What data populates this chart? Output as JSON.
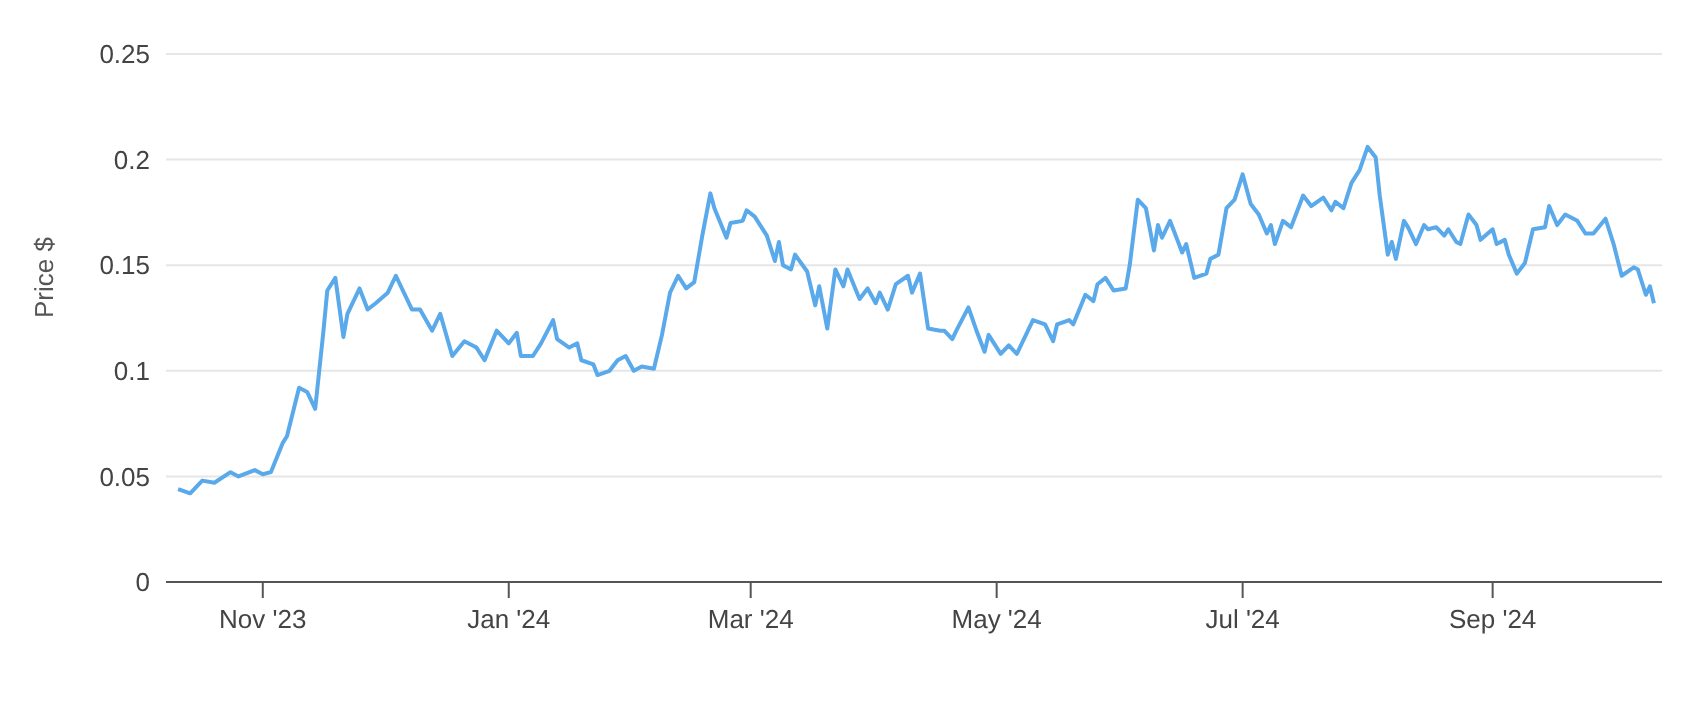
{
  "chart_data": {
    "type": "line",
    "ylabel": "Price $",
    "x": [
      "2023-10-11",
      "2023-10-14",
      "2023-10-17",
      "2023-10-20",
      "2023-10-24",
      "2023-10-26",
      "2023-10-30",
      "2023-11-01",
      "2023-11-03",
      "2023-11-06",
      "2023-11-07",
      "2023-11-10",
      "2023-11-12",
      "2023-11-14",
      "2023-11-16",
      "2023-11-17",
      "2023-11-19",
      "2023-11-21",
      "2023-11-22",
      "2023-11-25",
      "2023-11-27",
      "2023-11-29",
      "2023-12-02",
      "2023-12-04",
      "2023-12-08",
      "2023-12-10",
      "2023-12-13",
      "2023-12-15",
      "2023-12-18",
      "2023-12-21",
      "2023-12-24",
      "2023-12-26",
      "2023-12-29",
      "2024-01-01",
      "2024-01-03",
      "2024-01-04",
      "2024-01-07",
      "2024-01-09",
      "2024-01-12",
      "2024-01-13",
      "2024-01-16",
      "2024-01-18",
      "2024-01-19",
      "2024-01-22",
      "2024-01-23",
      "2024-01-26",
      "2024-01-28",
      "2024-01-30",
      "2024-02-01",
      "2024-02-03",
      "2024-02-06",
      "2024-02-08",
      "2024-02-10",
      "2024-02-12",
      "2024-02-14",
      "2024-02-16",
      "2024-02-18",
      "2024-02-20",
      "2024-02-21",
      "2024-02-24",
      "2024-02-25",
      "2024-02-28",
      "2024-02-29",
      "2024-03-02",
      "2024-03-05",
      "2024-03-07",
      "2024-03-08",
      "2024-03-09",
      "2024-03-11",
      "2024-03-12",
      "2024-03-15",
      "2024-03-17",
      "2024-03-18",
      "2024-03-20",
      "2024-03-22",
      "2024-03-24",
      "2024-03-25",
      "2024-03-28",
      "2024-03-30",
      "2024-04-01",
      "2024-04-02",
      "2024-04-04",
      "2024-04-06",
      "2024-04-09",
      "2024-04-10",
      "2024-04-12",
      "2024-04-14",
      "2024-04-17",
      "2024-04-18",
      "2024-04-20",
      "2024-04-21",
      "2024-04-24",
      "2024-04-26",
      "2024-04-28",
      "2024-04-29",
      "2024-05-02",
      "2024-05-04",
      "2024-05-06",
      "2024-05-10",
      "2024-05-13",
      "2024-05-15",
      "2024-05-16",
      "2024-05-19",
      "2024-05-20",
      "2024-05-23",
      "2024-05-25",
      "2024-05-26",
      "2024-05-28",
      "2024-05-30",
      "2024-06-02",
      "2024-06-03",
      "2024-06-05",
      "2024-06-07",
      "2024-06-09",
      "2024-06-10",
      "2024-06-11",
      "2024-06-13",
      "2024-06-16",
      "2024-06-17",
      "2024-06-19",
      "2024-06-22",
      "2024-06-23",
      "2024-06-25",
      "2024-06-27",
      "2024-06-29",
      "2024-07-01",
      "2024-07-03",
      "2024-07-05",
      "2024-07-07",
      "2024-07-08",
      "2024-07-09",
      "2024-07-11",
      "2024-07-13",
      "2024-07-16",
      "2024-07-18",
      "2024-07-21",
      "2024-07-23",
      "2024-07-24",
      "2024-07-26",
      "2024-07-28",
      "2024-07-30",
      "2024-08-01",
      "2024-08-03",
      "2024-08-04",
      "2024-08-06",
      "2024-08-07",
      "2024-08-08",
      "2024-08-10",
      "2024-08-11",
      "2024-08-13",
      "2024-08-15",
      "2024-08-16",
      "2024-08-18",
      "2024-08-20",
      "2024-08-21",
      "2024-08-23",
      "2024-08-24",
      "2024-08-26",
      "2024-08-28",
      "2024-08-29",
      "2024-09-01",
      "2024-09-02",
      "2024-09-04",
      "2024-09-05",
      "2024-09-07",
      "2024-09-09",
      "2024-09-11",
      "2024-09-14",
      "2024-09-15",
      "2024-09-17",
      "2024-09-19",
      "2024-09-22",
      "2024-09-24",
      "2024-09-26",
      "2024-09-29",
      "2024-10-01",
      "2024-10-03",
      "2024-10-06",
      "2024-10-07",
      "2024-10-09",
      "2024-10-10",
      "2024-10-11"
    ],
    "series": [
      {
        "color": "#5aa9ea",
        "values": [
          0.044,
          0.042,
          0.048,
          0.047,
          0.052,
          0.05,
          0.053,
          0.051,
          0.052,
          0.066,
          0.069,
          0.092,
          0.09,
          0.082,
          0.118,
          0.138,
          0.144,
          0.116,
          0.127,
          0.139,
          0.129,
          0.132,
          0.137,
          0.145,
          0.129,
          0.129,
          0.119,
          0.127,
          0.107,
          0.114,
          0.111,
          0.105,
          0.119,
          0.113,
          0.118,
          0.107,
          0.107,
          0.113,
          0.124,
          0.115,
          0.111,
          0.113,
          0.105,
          0.103,
          0.098,
          0.1,
          0.105,
          0.107,
          0.1,
          0.102,
          0.101,
          0.117,
          0.137,
          0.145,
          0.139,
          0.142,
          0.164,
          0.184,
          0.177,
          0.163,
          0.17,
          0.171,
          0.176,
          0.173,
          0.164,
          0.152,
          0.161,
          0.15,
          0.148,
          0.155,
          0.147,
          0.131,
          0.14,
          0.12,
          0.148,
          0.14,
          0.148,
          0.134,
          0.139,
          0.132,
          0.137,
          0.129,
          0.141,
          0.145,
          0.137,
          0.146,
          0.12,
          0.119,
          0.119,
          0.115,
          0.119,
          0.13,
          0.119,
          0.109,
          0.117,
          0.108,
          0.112,
          0.108,
          0.124,
          0.122,
          0.114,
          0.122,
          0.124,
          0.122,
          0.136,
          0.133,
          0.141,
          0.144,
          0.138,
          0.139,
          0.15,
          0.181,
          0.177,
          0.157,
          0.169,
          0.163,
          0.171,
          0.156,
          0.16,
          0.144,
          0.146,
          0.153,
          0.155,
          0.177,
          0.181,
          0.193,
          0.179,
          0.174,
          0.165,
          0.169,
          0.16,
          0.171,
          0.168,
          0.183,
          0.178,
          0.182,
          0.176,
          0.18,
          0.177,
          0.189,
          0.195,
          0.206,
          0.201,
          0.183,
          0.155,
          0.161,
          0.153,
          0.171,
          0.168,
          0.16,
          0.169,
          0.167,
          0.168,
          0.164,
          0.167,
          0.161,
          0.16,
          0.174,
          0.169,
          0.162,
          0.167,
          0.16,
          0.162,
          0.155,
          0.146,
          0.151,
          0.167,
          0.168,
          0.178,
          0.169,
          0.174,
          0.171,
          0.165,
          0.165,
          0.172,
          0.16,
          0.145,
          0.149,
          0.148,
          0.136,
          0.14,
          0.132
        ]
      }
    ],
    "xlim": [
      "2023-10-08",
      "2024-10-13"
    ],
    "xticks": [
      {
        "value": "2023-11-01",
        "label": "Nov '23"
      },
      {
        "value": "2024-01-01",
        "label": "Jan '24"
      },
      {
        "value": "2024-03-01",
        "label": "Mar '24"
      },
      {
        "value": "2024-05-01",
        "label": "May '24"
      },
      {
        "value": "2024-07-01",
        "label": "Jul '24"
      },
      {
        "value": "2024-09-01",
        "label": "Sep '24"
      }
    ],
    "ylim": [
      0,
      0.25
    ],
    "yticks": [
      0,
      0.05,
      0.1,
      0.15,
      0.2,
      0.25
    ],
    "grid": "y",
    "line_style": "solid"
  }
}
